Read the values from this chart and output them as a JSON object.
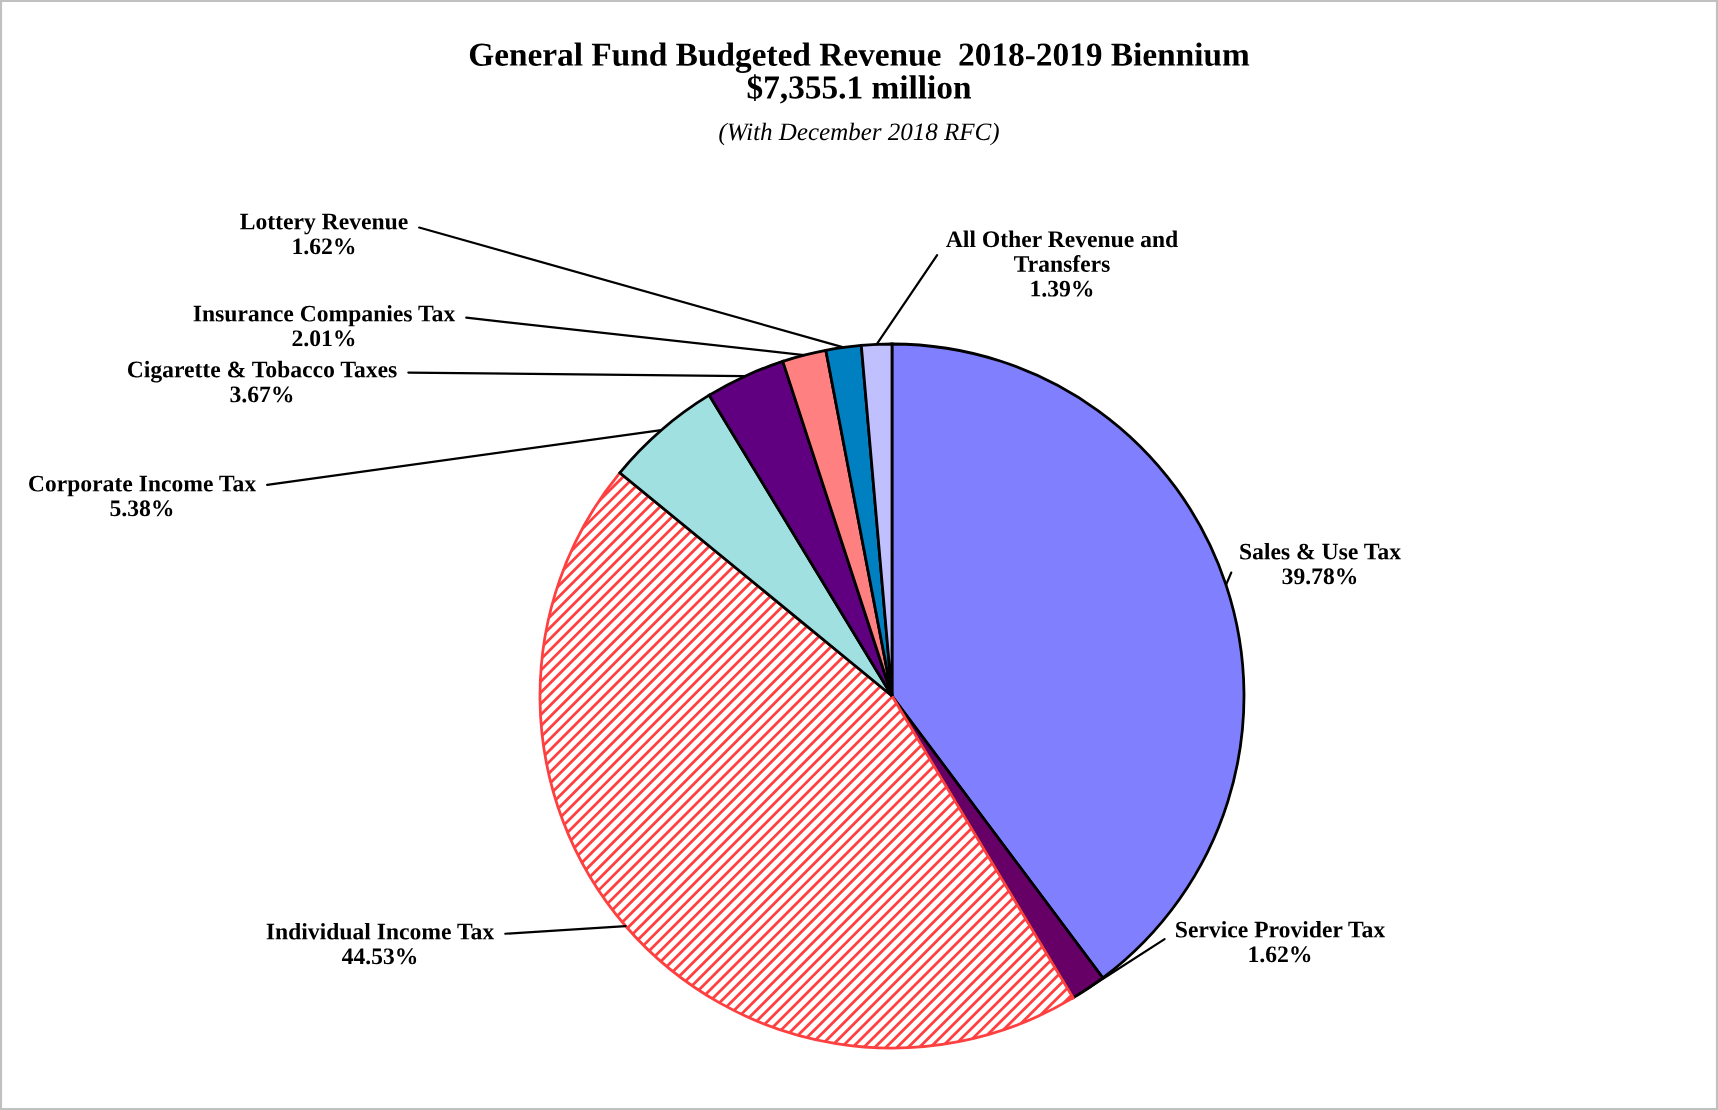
{
  "chart_data": {
    "type": "pie",
    "title": "General Fund Budgeted Revenue  2018-2019 Biennium\n$7,355.1 million",
    "subtitle": "(With December 2018 RFC)",
    "categories": [
      "Sales & Use Tax",
      "Service Provider Tax",
      "Individual Income Tax",
      "Corporate Income Tax",
      "Cigarette & Tobacco Taxes",
      "Insurance Companies Tax",
      "Lottery Revenue",
      "All Other Revenue and\nTransfers"
    ],
    "values": [
      39.78,
      1.62,
      44.53,
      5.38,
      3.67,
      2.01,
      1.62,
      1.39
    ],
    "colors": [
      "#8080ff",
      "#660066",
      "#ff4040",
      "#a0e0e0",
      "#600080",
      "#ff8080",
      "#0080c0",
      "#c0c0ff"
    ],
    "value_labels": [
      "39.78%",
      "1.62%",
      "44.53%",
      "5.38%",
      "3.67%",
      "2.01%",
      "1.62%",
      "1.39%"
    ],
    "legend": false
  }
}
